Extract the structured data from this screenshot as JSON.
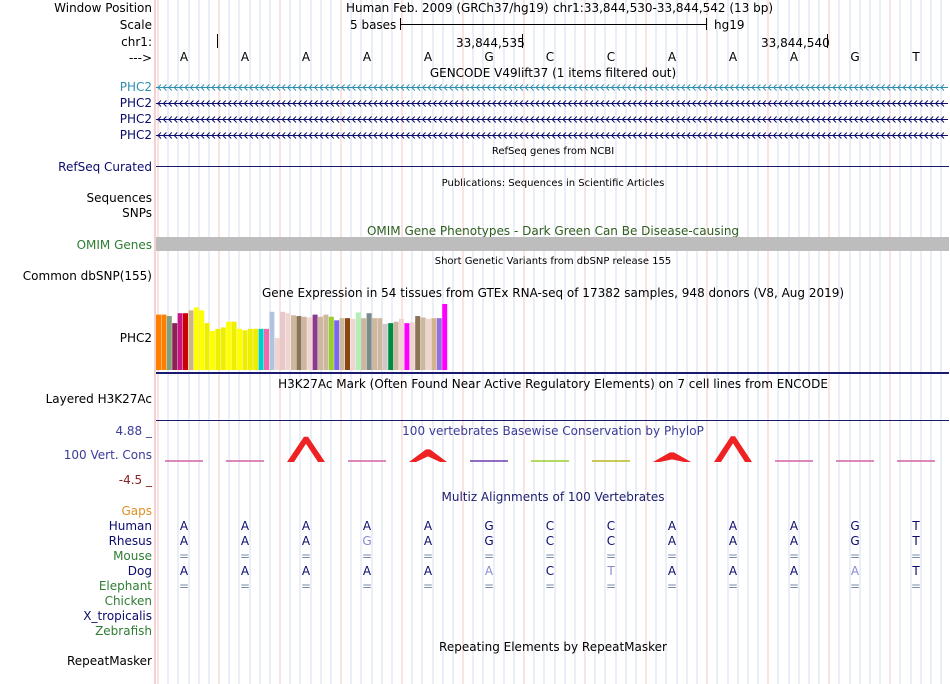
{
  "header": {
    "window_position_label": "Window Position",
    "scale_label": "Scale",
    "chrom_label": "chr1:",
    "strand_label": "--->",
    "assembly": "Human Feb. 2009 (GRCh37/hg19)",
    "position": "chr1:33,844,530-33,844,542 (13 bp)",
    "scale_text": "5 bases",
    "scale_db": "hg19",
    "coord1": "33,844,535",
    "coord2": "33,844,540"
  },
  "reference_bases": [
    "A",
    "A",
    "A",
    "A",
    "A",
    "G",
    "C",
    "C",
    "A",
    "A",
    "A",
    "G",
    "T"
  ],
  "gencode": {
    "title": "GENCODE V49lift37 (1 items filtered out)",
    "genes": [
      "PHC2",
      "PHC2",
      "PHC2",
      "PHC2"
    ],
    "gene_colors": [
      "#2f8fb0",
      "#0b0b6e",
      "#0b0b6e",
      "#0b0b6e"
    ]
  },
  "refseq": {
    "title": "RefSeq genes from NCBI",
    "label": "RefSeq Curated"
  },
  "publications": {
    "title": "Publications: Sequences in Scientific Articles",
    "label1": "Sequences",
    "label2": "SNPs"
  },
  "omim": {
    "title": "OMIM Gene Phenotypes - Dark Green Can Be Disease-causing",
    "label": "OMIM Genes"
  },
  "dbsnp": {
    "title": "Short Genetic Variants from dbSNP release 155",
    "label": "Common dbSNP(155)"
  },
  "gtex": {
    "title": "Gene Expression in 54 tissues from GTEx RNA-seq of 17382 samples, 948 donors (V8, Aug 2019)",
    "label": "PHC2",
    "values": [
      0.78,
      0.78,
      0.76,
      0.66,
      0.8,
      0.8,
      0.84,
      0.88,
      0.84,
      0.66,
      0.55,
      0.58,
      0.6,
      0.68,
      0.68,
      0.58,
      0.56,
      0.58,
      0.58,
      0.58,
      0.58,
      0.82,
      0.45,
      0.82,
      0.8,
      0.77,
      0.76,
      0.75,
      0.74,
      0.78,
      0.75,
      0.78,
      0.75,
      0.7,
      0.73,
      0.73,
      0.72,
      0.81,
      0.73,
      0.8,
      0.73,
      0.73,
      0.65,
      0.66,
      0.68,
      0.72,
      0.66,
      0.67,
      0.76,
      0.74,
      0.72,
      0.73,
      0.73,
      0.93
    ],
    "colors": [
      "#ff7f00",
      "#ff7f00",
      "#80a080",
      "#8b2252",
      "#c71585",
      "#cc0000",
      "#cdb38b",
      "#ffff00",
      "#ffff00",
      "#eeee00",
      "#ffff00",
      "#eeee00",
      "#eeee00",
      "#ffff00",
      "#eeee00",
      "#ffff00",
      "#eeee00",
      "#eeee00",
      "#eeee00",
      "#00cdcd",
      "#ee6aa7",
      "#b0c4de",
      "#eed5d2",
      "#e8c8c8",
      "#eed5d2",
      "#cdb79e",
      "#8b7355",
      "#cdb79e",
      "#eed5d2",
      "#8b3a8b",
      "#cdb79e",
      "#cdb79e",
      "#9acd32",
      "#7a67ee",
      "#cdb79e",
      "#8b4513",
      "#eed5d2",
      "#b4eeb4",
      "#cdb79e",
      "#7a8b8b",
      "#cdb79e",
      "#cdb79e",
      "#cdc9c9",
      "#008b45",
      "#cdb79e",
      "#eed5d2",
      "#ff00ff",
      "#eed5d2",
      "#8b7355",
      "#cdb79e",
      "#eed5d2",
      "#d2b48c",
      "#9370db",
      "#ff00ff"
    ]
  },
  "h3k27ac": {
    "title": "H3K27Ac Mark (Often Found Near Active Regulatory Elements) on 7 cell lines from ENCODE",
    "label": "Layered H3K27Ac"
  },
  "phylop": {
    "title": "100 vertebrates Basewise Conservation by PhyloP",
    "label": "100 Vert. Cons",
    "max_label": "4.88 _",
    "min_label": "-4.5 _",
    "scores": [
      -0.2,
      -0.3,
      4.2,
      -0.2,
      2.1,
      -0.6,
      -0.5,
      -0.5,
      1.6,
      4.3,
      -0.3,
      -0.3,
      -0.4
    ],
    "peak_color": "#ee2222"
  },
  "multiz": {
    "title": "Multiz Alignments of 100 Vertebrates",
    "gaps_label": "Gaps",
    "rows": [
      {
        "name": "Human",
        "color": "#0b0b6e",
        "bases": [
          "A",
          "A",
          "A",
          "A",
          "A",
          "G",
          "C",
          "C",
          "A",
          "A",
          "A",
          "G",
          "T"
        ]
      },
      {
        "name": "Rhesus",
        "color": "#0b0b6e",
        "bases": [
          "A",
          "A",
          "A",
          "G",
          "A",
          "G",
          "C",
          "C",
          "A",
          "A",
          "A",
          "G",
          "T"
        ]
      },
      {
        "name": "Mouse",
        "color": "#2e7d32",
        "bases": [
          "=",
          "=",
          "=",
          "=",
          "=",
          "=",
          "=",
          "=",
          "=",
          "=",
          "=",
          "=",
          "="
        ]
      },
      {
        "name": "Dog",
        "color": "#0b0b6e",
        "bases": [
          "A",
          "A",
          "A",
          "A",
          "A",
          "A",
          "C",
          "T",
          "A",
          "A",
          "A",
          "A",
          "T"
        ]
      },
      {
        "name": "Elephant",
        "color": "#2e7d32",
        "bases": [
          "=",
          "=",
          "=",
          "=",
          "=",
          "=",
          "=",
          "=",
          "=",
          "=",
          "=",
          "=",
          "="
        ]
      },
      {
        "name": "Chicken",
        "color": "#2e7d32",
        "bases": []
      },
      {
        "name": "X_tropicalis",
        "color": "#0b0b6e",
        "bases": []
      },
      {
        "name": "Zebrafish",
        "color": "#2e7d32",
        "bases": []
      }
    ]
  },
  "repeatmasker": {
    "title": "Repeating Elements by RepeatMasker",
    "label": "RepeatMasker"
  }
}
